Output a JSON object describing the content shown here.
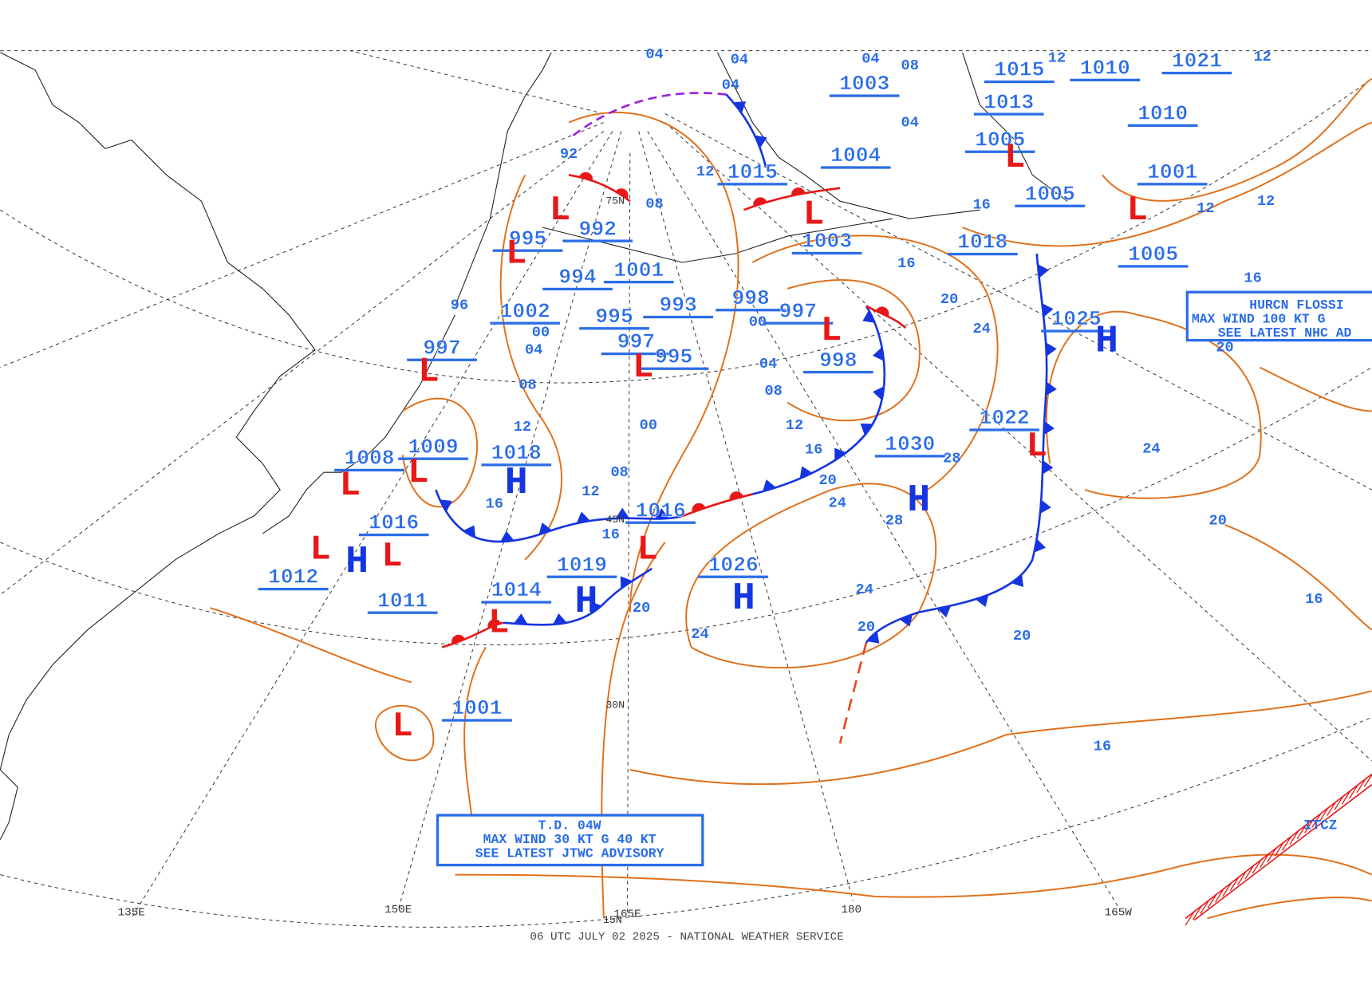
{
  "caption": "06 UTC JULY 02 2025 - NATIONAL WEATHER SERVICE",
  "advisories": [
    [
      "T.D. 04W",
      "MAX WIND 30 KT G 40 KT",
      "SEE LATEST JTWC ADVISORY"
    ],
    [
      "HURCN FLOSSI",
      "MAX WIND 100 KT G",
      "SEE LATEST NHC AD"
    ]
  ],
  "itcz": "ITCZ",
  "longitudes": [
    "135E",
    "150E",
    "165E",
    "180",
    "165W"
  ],
  "latitudes": [
    "15N",
    "30N",
    "45N",
    "75N"
  ],
  "pressure_labels": [
    1018,
    1016,
    1019,
    1026,
    1030,
    1025,
    1015,
    997,
    1008,
    1009,
    1014,
    1001,
    1012,
    1011,
    995,
    992,
    994,
    1001,
    1002,
    993,
    995,
    997,
    995,
    998,
    997,
    998,
    1003,
    1003,
    1004,
    1015,
    1010,
    1013,
    1005,
    1010,
    1001,
    1005,
    1018,
    1005,
    1022,
    1021,
    1016
  ],
  "center_letters": [
    "H",
    "H",
    "H",
    "H",
    "H",
    "H",
    "L",
    "L",
    "L",
    "L",
    "L",
    "L",
    "L",
    "L",
    "L",
    "L",
    "L",
    "L",
    "L",
    "L",
    "L",
    "L"
  ],
  "isobar_labels": [
    "04",
    "04",
    "04",
    "04",
    "04",
    "04",
    "04",
    "08",
    "08",
    "08",
    "08",
    "08",
    "12",
    "12",
    "12",
    "12",
    "12",
    "12",
    "12",
    "12",
    "16",
    "16",
    "16",
    "16",
    "16",
    "16",
    "16",
    "16",
    "20",
    "20",
    "20",
    "20",
    "20",
    "20",
    "20",
    "24",
    "24",
    "24",
    "24",
    "24",
    "28",
    "28",
    "00",
    "00",
    "00",
    "92",
    "96"
  ]
}
